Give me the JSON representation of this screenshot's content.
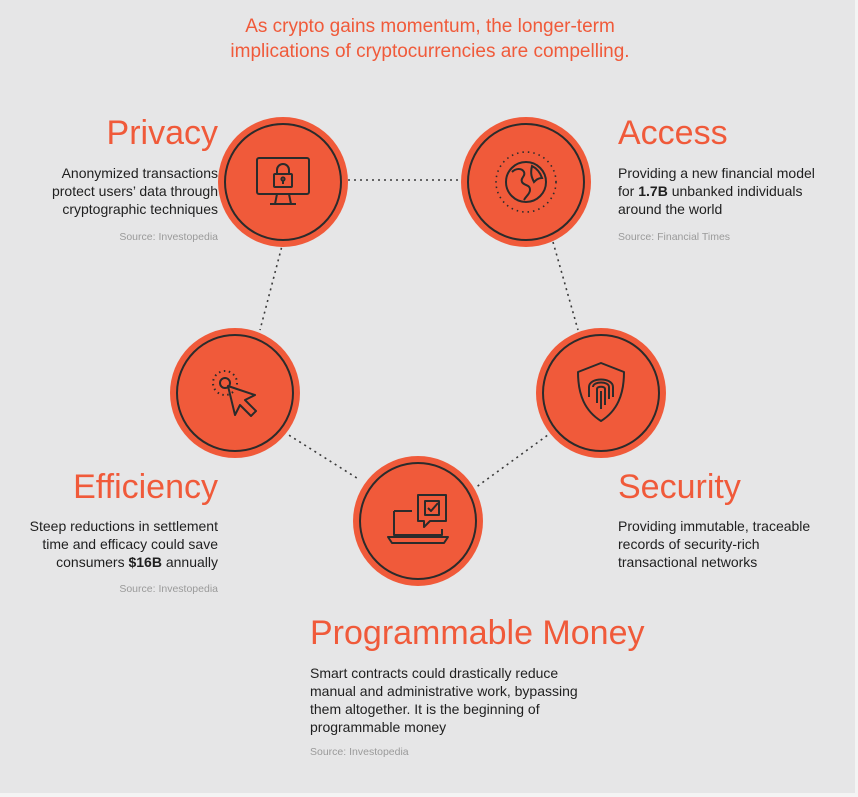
{
  "headline": {
    "line1": "As crypto gains momentum, the longer-term",
    "line2": "implications of cryptocurrencies are compelling."
  },
  "colors": {
    "accent": "#f05a3a",
    "background": "#e6e6e7",
    "text": "#1f1f1f",
    "source": "#9a9a9a",
    "icon_stroke": "#2b2b2b"
  },
  "pillars": {
    "privacy": {
      "title": "Privacy",
      "description": "Anonymized transactions protect users’ data through cryptographic techniques",
      "source": "Source: Investopedia",
      "icon": "monitor-lock-icon"
    },
    "access": {
      "title": "Access",
      "description_pre": "Providing a new financial model for ",
      "description_highlight": "1.7B",
      "description_post": " unbanked individuals around the world",
      "source": "Source: Financial Times",
      "icon": "globe-icon"
    },
    "efficiency": {
      "title": "Efficiency",
      "description_pre": "Steep reductions in settlement time and efficacy could save consumers ",
      "description_highlight": "$16B",
      "description_post": " annually",
      "source": "Source: Investopedia",
      "icon": "cursor-click-icon"
    },
    "security": {
      "title": "Security",
      "description": "Providing immutable, traceable records of security-rich transactional networks",
      "icon": "shield-fingerprint-icon"
    },
    "programmable": {
      "title": "Programmable Money",
      "description": "Smart contracts could drastically reduce manual and administrative work, bypassing them altogether. It is the beginning of programmable money",
      "source": "Source: Investopedia",
      "icon": "laptop-checkbox-icon"
    }
  }
}
